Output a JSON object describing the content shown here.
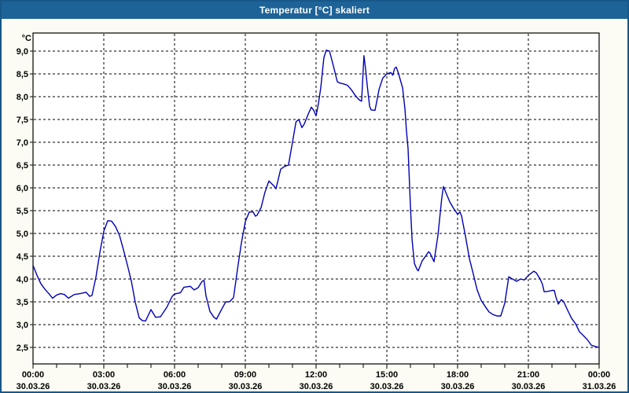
{
  "window": {
    "title": "Temperatur [°C] skaliert",
    "titlebar_color": "#1e6398",
    "border_color": "#17578a",
    "background_color": "#fcfcf4"
  },
  "chart_data": {
    "type": "line",
    "title": "Temperatur [°C] skaliert",
    "unit_label": "°C",
    "grid": {
      "style": "dashed",
      "color": "#000000",
      "plot_background": "#ffffff"
    },
    "x_axis": {
      "minor_tick_interval_hours": 1,
      "major_tick_interval_hours": 3,
      "xlim_hours": [
        0,
        24
      ],
      "labels": [
        {
          "hour": 0,
          "time": "00:00",
          "date": "30.03.26"
        },
        {
          "hour": 3,
          "time": "03:00",
          "date": "30.03.26"
        },
        {
          "hour": 6,
          "time": "06:00",
          "date": "30.03.26"
        },
        {
          "hour": 9,
          "time": "09:00",
          "date": "30.03.26"
        },
        {
          "hour": 12,
          "time": "12:00",
          "date": "30.03.26"
        },
        {
          "hour": 15,
          "time": "15:00",
          "date": "30.03.26"
        },
        {
          "hour": 18,
          "time": "18:00",
          "date": "30.03.26"
        },
        {
          "hour": 21,
          "time": "21:00",
          "date": "30.03.26"
        },
        {
          "hour": 24,
          "time": "00:00",
          "date": "31.03.26"
        }
      ]
    },
    "y_axis": {
      "min": 2.5,
      "max": 9.0,
      "step": 0.5,
      "tick_labels": [
        "2,5",
        "3,0",
        "3,5",
        "4,0",
        "4,5",
        "5,0",
        "5,5",
        "6,0",
        "6,5",
        "7,0",
        "7,5",
        "8,0",
        "8,5",
        "9,0"
      ]
    },
    "series": [
      {
        "name": "Temperatur",
        "color": "#0000b3",
        "points_hour_value": [
          [
            0,
            4.3
          ],
          [
            0.17,
            4.08
          ],
          [
            0.33,
            3.9
          ],
          [
            0.5,
            3.78
          ],
          [
            0.67,
            3.68
          ],
          [
            0.83,
            3.58
          ],
          [
            1,
            3.65
          ],
          [
            1.17,
            3.68
          ],
          [
            1.33,
            3.66
          ],
          [
            1.5,
            3.58
          ],
          [
            1.75,
            3.66
          ],
          [
            2,
            3.68
          ],
          [
            2.25,
            3.71
          ],
          [
            2.4,
            3.62
          ],
          [
            2.5,
            3.64
          ],
          [
            2.67,
            4.05
          ],
          [
            2.83,
            4.57
          ],
          [
            3,
            5.05
          ],
          [
            3.17,
            5.28
          ],
          [
            3.33,
            5.27
          ],
          [
            3.5,
            5.15
          ],
          [
            3.67,
            4.95
          ],
          [
            3.83,
            4.65
          ],
          [
            4,
            4.31
          ],
          [
            4.17,
            3.95
          ],
          [
            4.33,
            3.5
          ],
          [
            4.5,
            3.15
          ],
          [
            4.63,
            3.09
          ],
          [
            4.77,
            3.08
          ],
          [
            5,
            3.33
          ],
          [
            5.2,
            3.16
          ],
          [
            5.4,
            3.17
          ],
          [
            5.67,
            3.38
          ],
          [
            5.9,
            3.62
          ],
          [
            6,
            3.67
          ],
          [
            6.25,
            3.7
          ],
          [
            6.4,
            3.82
          ],
          [
            6.67,
            3.84
          ],
          [
            6.83,
            3.76
          ],
          [
            7,
            3.81
          ],
          [
            7.17,
            3.95
          ],
          [
            7.25,
            3.97
          ],
          [
            7.33,
            3.64
          ],
          [
            7.5,
            3.29
          ],
          [
            7.67,
            3.16
          ],
          [
            7.78,
            3.12
          ],
          [
            8,
            3.34
          ],
          [
            8.17,
            3.5
          ],
          [
            8.33,
            3.5
          ],
          [
            8.5,
            3.59
          ],
          [
            8.67,
            4.22
          ],
          [
            8.83,
            4.78
          ],
          [
            9,
            5.26
          ],
          [
            9.17,
            5.47
          ],
          [
            9.33,
            5.47
          ],
          [
            9.43,
            5.38
          ],
          [
            9.5,
            5.4
          ],
          [
            9.67,
            5.57
          ],
          [
            9.83,
            5.9
          ],
          [
            10,
            6.15
          ],
          [
            10.2,
            6.05
          ],
          [
            10.3,
            5.98
          ],
          [
            10.5,
            6.41
          ],
          [
            10.67,
            6.47
          ],
          [
            10.83,
            6.5
          ],
          [
            11,
            7
          ],
          [
            11.15,
            7.45
          ],
          [
            11.27,
            7.5
          ],
          [
            11.4,
            7.32
          ],
          [
            11.5,
            7.4
          ],
          [
            11.67,
            7.62
          ],
          [
            11.8,
            7.77
          ],
          [
            11.9,
            7.7
          ],
          [
            12,
            7.58
          ],
          [
            12.1,
            7.85
          ],
          [
            12.2,
            8.2
          ],
          [
            12.33,
            8.85
          ],
          [
            12.43,
            9.02
          ],
          [
            12.57,
            9
          ],
          [
            12.67,
            8.8
          ],
          [
            12.77,
            8.6
          ],
          [
            12.9,
            8.33
          ],
          [
            13,
            8.3
          ],
          [
            13.17,
            8.28
          ],
          [
            13.33,
            8.25
          ],
          [
            13.5,
            8.15
          ],
          [
            13.67,
            8.02
          ],
          [
            13.83,
            7.93
          ],
          [
            13.93,
            7.9
          ],
          [
            14.03,
            8.9
          ],
          [
            14.1,
            8.6
          ],
          [
            14.17,
            8.24
          ],
          [
            14.27,
            7.79
          ],
          [
            14.33,
            7.71
          ],
          [
            14.5,
            7.7
          ],
          [
            14.67,
            8.16
          ],
          [
            14.83,
            8.41
          ],
          [
            15,
            8.5
          ],
          [
            15.17,
            8.53
          ],
          [
            15.25,
            8.47
          ],
          [
            15.33,
            8.62
          ],
          [
            15.4,
            8.65
          ],
          [
            15.5,
            8.5
          ],
          [
            15.67,
            8.19
          ],
          [
            15.77,
            7.72
          ],
          [
            15.83,
            7.26
          ],
          [
            15.9,
            6.86
          ],
          [
            16,
            5.6
          ],
          [
            16.07,
            4.86
          ],
          [
            16.17,
            4.34
          ],
          [
            16.27,
            4.22
          ],
          [
            16.33,
            4.18
          ],
          [
            16.5,
            4.4
          ],
          [
            16.67,
            4.52
          ],
          [
            16.77,
            4.6
          ],
          [
            16.83,
            4.57
          ],
          [
            17,
            4.38
          ],
          [
            17.17,
            4.97
          ],
          [
            17.27,
            5.48
          ],
          [
            17.33,
            5.78
          ],
          [
            17.4,
            6.03
          ],
          [
            17.5,
            5.9
          ],
          [
            17.67,
            5.69
          ],
          [
            17.83,
            5.55
          ],
          [
            18,
            5.42
          ],
          [
            18.1,
            5.47
          ],
          [
            18.17,
            5.38
          ],
          [
            18.33,
            4.95
          ],
          [
            18.5,
            4.45
          ],
          [
            18.67,
            4.1
          ],
          [
            18.83,
            3.76
          ],
          [
            19,
            3.53
          ],
          [
            19.17,
            3.4
          ],
          [
            19.33,
            3.28
          ],
          [
            19.5,
            3.22
          ],
          [
            19.67,
            3.19
          ],
          [
            19.83,
            3.19
          ],
          [
            20,
            3.47
          ],
          [
            20.17,
            4.05
          ],
          [
            20.33,
            4
          ],
          [
            20.5,
            3.95
          ],
          [
            20.67,
            4
          ],
          [
            20.83,
            3.98
          ],
          [
            21,
            4.08
          ],
          [
            21.23,
            4.17
          ],
          [
            21.33,
            4.14
          ],
          [
            21.5,
            4
          ],
          [
            21.6,
            3.88
          ],
          [
            21.67,
            3.72
          ],
          [
            21.83,
            3.73
          ],
          [
            22,
            3.75
          ],
          [
            22.1,
            3.75
          ],
          [
            22.17,
            3.6
          ],
          [
            22.27,
            3.45
          ],
          [
            22.4,
            3.55
          ],
          [
            22.5,
            3.5
          ],
          [
            22.67,
            3.31
          ],
          [
            22.83,
            3.14
          ],
          [
            23,
            3.02
          ],
          [
            23.17,
            2.84
          ],
          [
            23.33,
            2.76
          ],
          [
            23.5,
            2.67
          ],
          [
            23.67,
            2.55
          ],
          [
            23.83,
            2.52
          ],
          [
            24,
            2.5
          ]
        ]
      }
    ]
  }
}
